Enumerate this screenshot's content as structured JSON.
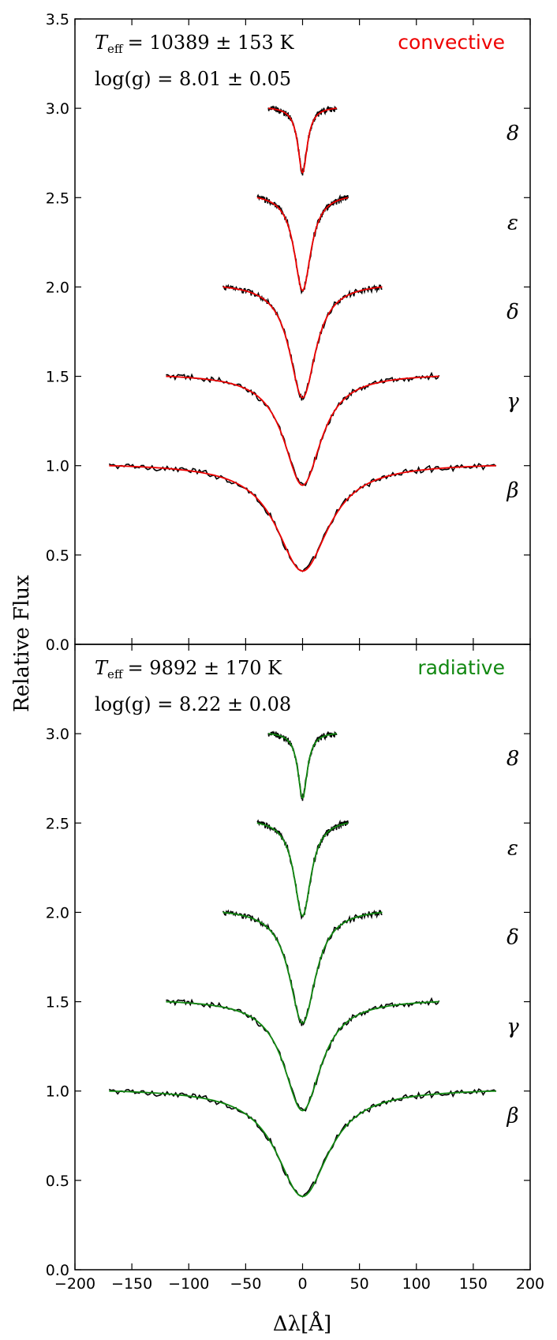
{
  "chart_data": [
    {
      "type": "line",
      "panel": "top",
      "model_name": "convective",
      "model_color": "#ee0000",
      "teff_label": "T_eff = 10389 ± 153 K",
      "teff_symbol": "T",
      "teff_sub": "eff",
      "teff_value": "= 10389 ± 153 K",
      "logg_label": "log(g) = 8.01 ± 0.05",
      "xlim": [
        -200,
        200
      ],
      "ylim": [
        0,
        3.5
      ],
      "ylabel": "Relative Flux",
      "yticks": [
        "0.0",
        "0.5",
        "1.0",
        "1.5",
        "2.0",
        "2.5",
        "3.0",
        "3.5"
      ],
      "series": [
        {
          "name": "β",
          "offset": 0.0,
          "half_width": 170,
          "depth": 0.59,
          "core_width": 28
        },
        {
          "name": "γ",
          "offset": 0.5,
          "half_width": 120,
          "depth": 0.61,
          "core_width": 20
        },
        {
          "name": "δ",
          "offset": 1.0,
          "half_width": 70,
          "depth": 0.62,
          "core_width": 14
        },
        {
          "name": "ε",
          "offset": 1.5,
          "half_width": 40,
          "depth": 0.52,
          "core_width": 9
        },
        {
          "name": "8",
          "offset": 2.0,
          "half_width": 30,
          "depth": 0.36,
          "core_width": 5
        }
      ]
    },
    {
      "type": "line",
      "panel": "bottom",
      "model_name": "radiative",
      "model_color": "#118811",
      "teff_label": "T_eff = 9892 ± 170 K",
      "teff_symbol": "T",
      "teff_sub": "eff",
      "teff_value": "= 9892 ± 170 K",
      "logg_label": "log(g) = 8.22 ± 0.08",
      "xlim": [
        -200,
        200
      ],
      "ylim": [
        0,
        3.5
      ],
      "xlabel": "Δλ[Å]",
      "xticks": [
        "−200",
        "−150",
        "−100",
        "−50",
        "0",
        "50",
        "100",
        "150",
        "200"
      ],
      "yticks": [
        "0.0",
        "0.5",
        "1.0",
        "1.5",
        "2.0",
        "2.5",
        "3.0"
      ],
      "series": [
        {
          "name": "β",
          "offset": 0.0,
          "half_width": 170,
          "depth": 0.59,
          "core_width": 28
        },
        {
          "name": "γ",
          "offset": 0.5,
          "half_width": 120,
          "depth": 0.61,
          "core_width": 20
        },
        {
          "name": "δ",
          "offset": 1.0,
          "half_width": 70,
          "depth": 0.62,
          "core_width": 14
        },
        {
          "name": "ε",
          "offset": 1.5,
          "half_width": 40,
          "depth": 0.52,
          "core_width": 9
        },
        {
          "name": "8",
          "offset": 2.0,
          "half_width": 30,
          "depth": 0.36,
          "core_width": 5
        }
      ]
    }
  ]
}
